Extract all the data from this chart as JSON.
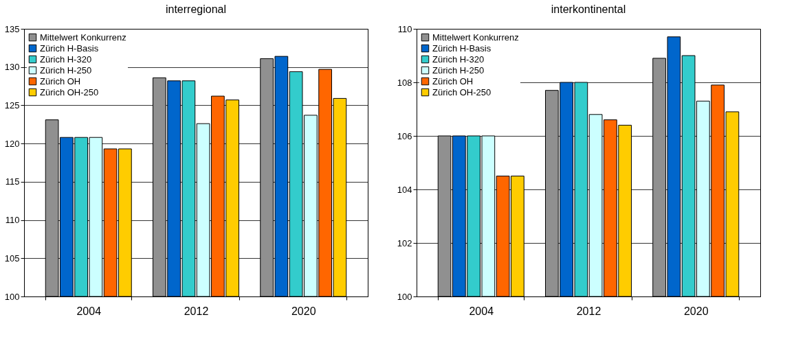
{
  "chart_data": [
    {
      "type": "bar",
      "title": "interregional",
      "categories": [
        "2004",
        "2012",
        "2020"
      ],
      "ylim": [
        100,
        135
      ],
      "yticks": [
        100,
        105,
        110,
        115,
        120,
        125,
        130,
        135
      ],
      "grid": "y",
      "legend": "top left",
      "series": [
        {
          "name": "Mittelwert Konkurrenz",
          "color": "#909090",
          "values": [
            123.1,
            128.6,
            131.1
          ]
        },
        {
          "name": "Zürich H-Basis",
          "color": "#0066cc",
          "values": [
            120.8,
            128.2,
            131.4
          ]
        },
        {
          "name": "Zürich H-320",
          "color": "#33cccc",
          "values": [
            120.8,
            128.2,
            129.4
          ]
        },
        {
          "name": "Zürich H-250",
          "color": "#ccffff",
          "values": [
            120.8,
            122.6,
            123.7
          ]
        },
        {
          "name": "Zürich OH",
          "color": "#ff6600",
          "values": [
            119.3,
            126.2,
            129.7
          ]
        },
        {
          "name": "Zürich OH-250",
          "color": "#ffcc00",
          "values": [
            119.3,
            125.7,
            125.9
          ]
        }
      ]
    },
    {
      "type": "bar",
      "title": "interkontinental",
      "categories": [
        "2004",
        "2012",
        "2020"
      ],
      "ylim": [
        100,
        110
      ],
      "yticks": [
        100,
        102,
        104,
        106,
        108,
        110
      ],
      "grid": "y",
      "legend": "top left",
      "series": [
        {
          "name": "Mittelwert Konkurrenz",
          "color": "#909090",
          "values": [
            106.0,
            107.7,
            108.9
          ]
        },
        {
          "name": "Zürich H-Basis",
          "color": "#0066cc",
          "values": [
            106.0,
            108.0,
            109.7
          ]
        },
        {
          "name": "Zürich H-320",
          "color": "#33cccc",
          "values": [
            106.0,
            108.0,
            109.0
          ]
        },
        {
          "name": "Zürich H-250",
          "color": "#ccffff",
          "values": [
            106.0,
            106.8,
            107.3
          ]
        },
        {
          "name": "Zürich OH",
          "color": "#ff6600",
          "values": [
            104.5,
            106.6,
            107.9
          ]
        },
        {
          "name": "Zürich OH-250",
          "color": "#ffcc00",
          "values": [
            104.5,
            106.4,
            106.9
          ]
        }
      ]
    }
  ]
}
